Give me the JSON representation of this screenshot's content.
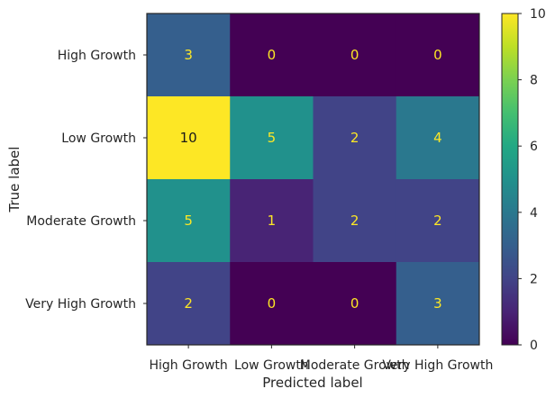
{
  "chart_data": {
    "type": "heatmap",
    "xlabel": "Predicted label",
    "ylabel": "True label",
    "x_categories": [
      "High Growth",
      "Low Growth",
      "Moderate Growth",
      "Very High Growth"
    ],
    "y_categories": [
      "High Growth",
      "Low Growth",
      "Moderate Growth",
      "Very High Growth"
    ],
    "values": [
      [
        3,
        0,
        0,
        0
      ],
      [
        10,
        5,
        2,
        4
      ],
      [
        5,
        1,
        2,
        2
      ],
      [
        2,
        0,
        0,
        3
      ]
    ],
    "colorbar": {
      "min": 0,
      "max": 10,
      "ticks": [
        0,
        2,
        4,
        6,
        8,
        10
      ],
      "colormap": "viridis"
    }
  }
}
